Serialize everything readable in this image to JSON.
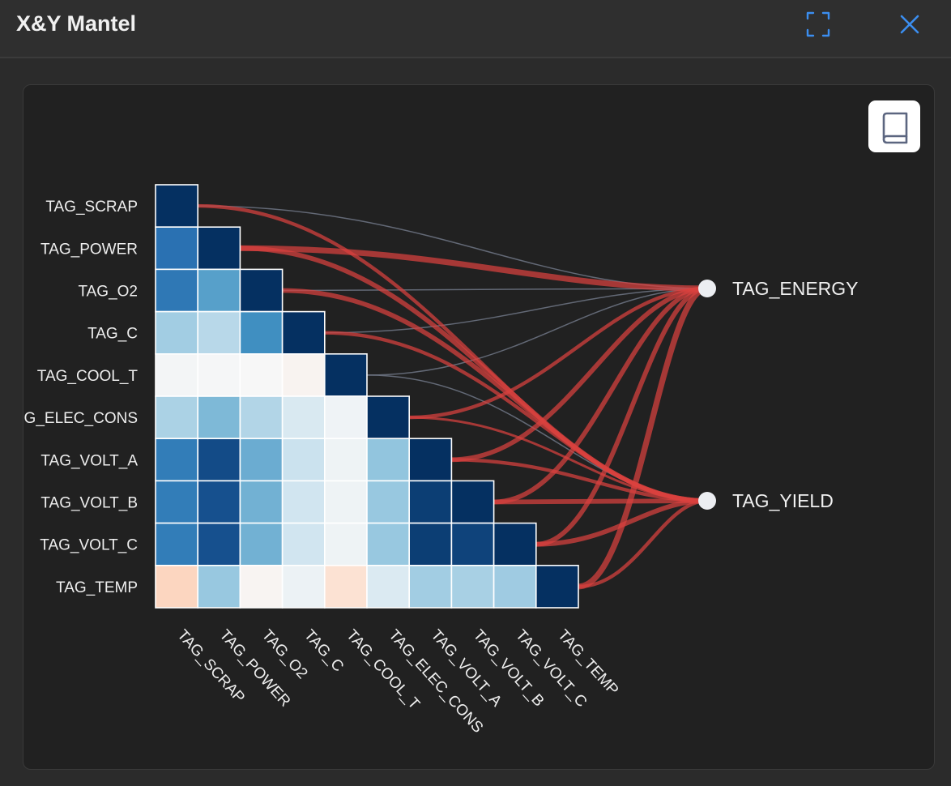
{
  "window": {
    "title": "X&Y Mantel",
    "expand_icon": "expand-icon",
    "close_icon": "close-icon",
    "accent_color": "#3b8ef0"
  },
  "toolbar": {
    "book_icon": "book-icon"
  },
  "chart_data": {
    "type": "heatmap",
    "variant": "mantel-test correlation triangle",
    "x_tags": [
      "TAG_SCRAP",
      "TAG_POWER",
      "TAG_O2",
      "TAG_C",
      "TAG_COOL_T",
      "TAG_ELEC_CONS",
      "TAG_VOLT_A",
      "TAG_VOLT_B",
      "TAG_VOLT_C",
      "TAG_TEMP"
    ],
    "row_labels": [
      "TAG_SCRAP",
      "TAG_POWER",
      "TAG_O2",
      "TAG_C",
      "TAG_COOL_T",
      "G_ELEC_CONS",
      "TAG_VOLT_A",
      "TAG_VOLT_B",
      "TAG_VOLT_C",
      "TAG_TEMP"
    ],
    "colorscale": {
      "min": -1,
      "max": 1,
      "negative": "#67001f",
      "neutral": "#f7f7f7",
      "positive": "#053061"
    },
    "matrix": [
      [
        1.0
      ],
      [
        0.75,
        1.0
      ],
      [
        0.72,
        0.55,
        1.0
      ],
      [
        0.35,
        0.28,
        0.62,
        1.0
      ],
      [
        0.02,
        0.01,
        0.0,
        -0.03,
        1.0
      ],
      [
        0.32,
        0.45,
        0.3,
        0.16,
        0.04,
        1.0
      ],
      [
        0.7,
        0.9,
        0.5,
        0.22,
        0.05,
        0.4,
        1.0
      ],
      [
        0.7,
        0.88,
        0.48,
        0.2,
        0.05,
        0.38,
        0.95,
        1.0
      ],
      [
        0.7,
        0.88,
        0.48,
        0.2,
        0.05,
        0.38,
        0.95,
        0.93,
        1.0
      ],
      [
        -0.22,
        0.38,
        -0.02,
        0.06,
        -0.15,
        0.15,
        0.35,
        0.33,
        0.36,
        1.0
      ]
    ],
    "targets": [
      "TAG_ENERGY",
      "TAG_YIELD"
    ],
    "edge_colors": {
      "significant": "#d9413f",
      "non_significant": "#6e7585"
    },
    "links": [
      {
        "from": "TAG_SCRAP",
        "to": "TAG_ENERGY",
        "significant": false,
        "weight": 1
      },
      {
        "from": "TAG_SCRAP",
        "to": "TAG_YIELD",
        "significant": true,
        "weight": 2
      },
      {
        "from": "TAG_POWER",
        "to": "TAG_ENERGY",
        "significant": true,
        "weight": 4
      },
      {
        "from": "TAG_POWER",
        "to": "TAG_YIELD",
        "significant": true,
        "weight": 3
      },
      {
        "from": "TAG_O2",
        "to": "TAG_ENERGY",
        "significant": false,
        "weight": 1
      },
      {
        "from": "TAG_O2",
        "to": "TAG_YIELD",
        "significant": true,
        "weight": 3
      },
      {
        "from": "TAG_C",
        "to": "TAG_ENERGY",
        "significant": false,
        "weight": 1
      },
      {
        "from": "TAG_C",
        "to": "TAG_YIELD",
        "significant": true,
        "weight": 2
      },
      {
        "from": "TAG_COOL_T",
        "to": "TAG_ENERGY",
        "significant": false,
        "weight": 1
      },
      {
        "from": "TAG_COOL_T",
        "to": "TAG_YIELD",
        "significant": false,
        "weight": 1
      },
      {
        "from": "TAG_ELEC_CONS",
        "to": "TAG_ENERGY",
        "significant": true,
        "weight": 2
      },
      {
        "from": "TAG_ELEC_CONS",
        "to": "TAG_YIELD",
        "significant": true,
        "weight": 1
      },
      {
        "from": "TAG_VOLT_A",
        "to": "TAG_ENERGY",
        "significant": true,
        "weight": 3
      },
      {
        "from": "TAG_VOLT_A",
        "to": "TAG_YIELD",
        "significant": true,
        "weight": 2
      },
      {
        "from": "TAG_VOLT_B",
        "to": "TAG_ENERGY",
        "significant": true,
        "weight": 3
      },
      {
        "from": "TAG_VOLT_B",
        "to": "TAG_YIELD",
        "significant": true,
        "weight": 3
      },
      {
        "from": "TAG_VOLT_C",
        "to": "TAG_ENERGY",
        "significant": true,
        "weight": 3
      },
      {
        "from": "TAG_VOLT_C",
        "to": "TAG_YIELD",
        "significant": true,
        "weight": 3
      },
      {
        "from": "TAG_TEMP",
        "to": "TAG_ENERGY",
        "significant": true,
        "weight": 4
      },
      {
        "from": "TAG_TEMP",
        "to": "TAG_YIELD",
        "significant": true,
        "weight": 2
      }
    ]
  }
}
